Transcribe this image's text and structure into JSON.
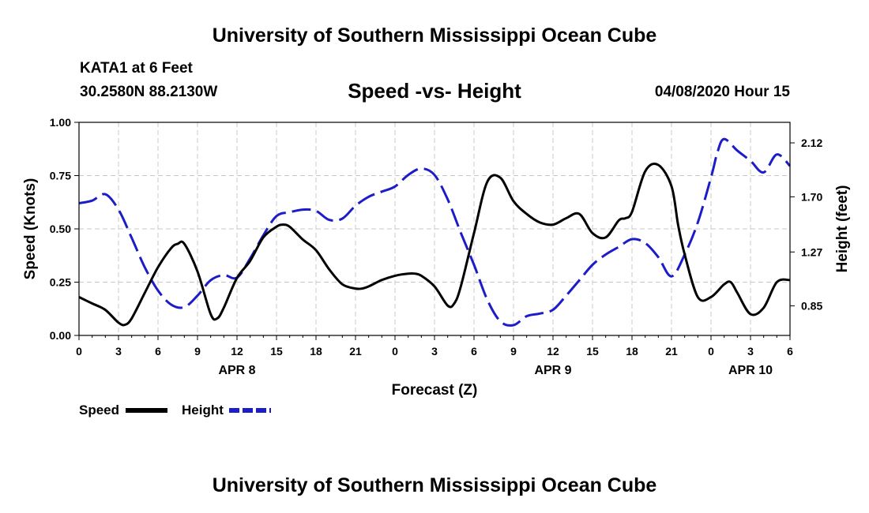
{
  "header": {
    "title": "University of Southern Mississippi Ocean Cube",
    "station": "KATA1 at 6 Feet",
    "coordinates": "30.2580N 88.2130W",
    "datetime": "04/08/2020 Hour 15"
  },
  "footer": {
    "title": "University of Southern Mississippi Ocean Cube"
  },
  "chart_data": {
    "type": "line",
    "title": "Speed -vs- Height",
    "xlabel": "Forecast (Z)",
    "ylabel": "Speed (Knots)",
    "y2label": "Height (feet)",
    "xlim": [
      0,
      54
    ],
    "ylim": [
      0,
      1
    ],
    "y2lim": [
      0.62,
      2.28
    ],
    "x_ticks": [
      0,
      3,
      6,
      9,
      12,
      15,
      18,
      21,
      24,
      27,
      30,
      33,
      36,
      39,
      42,
      45,
      48,
      51,
      54
    ],
    "x_tick_labels": [
      "0",
      "3",
      "6",
      "9",
      "12",
      "15",
      "18",
      "21",
      "0",
      "3",
      "6",
      "9",
      "12",
      "15",
      "18",
      "21",
      "0",
      "3",
      "6"
    ],
    "y_ticks": [
      0,
      0.25,
      0.5,
      0.75,
      1.0
    ],
    "y_tick_labels": [
      "0.00",
      "0.25",
      "0.50",
      "0.75",
      "1.00"
    ],
    "y2_ticks": [
      0.85,
      1.27,
      1.7,
      2.12
    ],
    "y2_tick_labels": [
      "0.85",
      "1.27",
      "1.70",
      "2.12"
    ],
    "day_labels": [
      {
        "x": 12,
        "label": "APR 8"
      },
      {
        "x": 36,
        "label": "APR 9"
      },
      {
        "x": 51,
        "label": "APR 10"
      }
    ],
    "grid": true,
    "legend": {
      "position": "bottom-left",
      "entries": [
        "Speed",
        "Height"
      ]
    },
    "series": [
      {
        "name": "Speed",
        "color": "#000000",
        "axis": "left",
        "style": "solid",
        "x": [
          0,
          1,
          2,
          3,
          3.5,
          4,
          5,
          6,
          7,
          7.5,
          8,
          9,
          10,
          10.5,
          11,
          12,
          13,
          14,
          15,
          15.5,
          16,
          17,
          18,
          19,
          20,
          21,
          21.5,
          22,
          23,
          24,
          25,
          25.5,
          26,
          27,
          28,
          28.5,
          29,
          30,
          31,
          32,
          33,
          34,
          35,
          36,
          37,
          38,
          39,
          40,
          41,
          41.5,
          42,
          43,
          44,
          45,
          45.5,
          46,
          47,
          48,
          49,
          49.5,
          50,
          51,
          52,
          53,
          54
        ],
        "y": [
          0.18,
          0.15,
          0.12,
          0.06,
          0.05,
          0.08,
          0.2,
          0.32,
          0.41,
          0.43,
          0.43,
          0.3,
          0.1,
          0.08,
          0.13,
          0.27,
          0.35,
          0.46,
          0.51,
          0.52,
          0.51,
          0.45,
          0.4,
          0.31,
          0.24,
          0.22,
          0.22,
          0.23,
          0.26,
          0.28,
          0.29,
          0.29,
          0.28,
          0.23,
          0.14,
          0.15,
          0.23,
          0.48,
          0.72,
          0.74,
          0.63,
          0.57,
          0.53,
          0.52,
          0.55,
          0.57,
          0.48,
          0.46,
          0.54,
          0.55,
          0.58,
          0.77,
          0.8,
          0.7,
          0.52,
          0.38,
          0.18,
          0.18,
          0.24,
          0.25,
          0.2,
          0.1,
          0.13,
          0.25,
          0.26
        ]
      },
      {
        "name": "Height",
        "color": "#1c1cc8",
        "axis": "right",
        "style": "dashed",
        "x": [
          0,
          1,
          2,
          3,
          4,
          5,
          6,
          7,
          8,
          9,
          10,
          11,
          12,
          13,
          14,
          15,
          16,
          17,
          18,
          19,
          20,
          21,
          22,
          23,
          24,
          25,
          26,
          27,
          28,
          29,
          30,
          31,
          32,
          33,
          34,
          35,
          36,
          37,
          38,
          39,
          40,
          41,
          42,
          43,
          44,
          45,
          46,
          47,
          48,
          48.5,
          49,
          50,
          51,
          52,
          53,
          54
        ],
        "y": [
          1.65,
          1.67,
          1.72,
          1.6,
          1.38,
          1.15,
          0.97,
          0.86,
          0.84,
          0.93,
          1.05,
          1.09,
          1.07,
          1.22,
          1.4,
          1.55,
          1.58,
          1.6,
          1.59,
          1.52,
          1.53,
          1.63,
          1.7,
          1.74,
          1.78,
          1.87,
          1.92,
          1.87,
          1.68,
          1.42,
          1.17,
          0.9,
          0.73,
          0.7,
          0.77,
          0.79,
          0.82,
          0.93,
          1.05,
          1.17,
          1.25,
          1.31,
          1.37,
          1.34,
          1.23,
          1.08,
          1.25,
          1.5,
          1.85,
          2.05,
          2.15,
          2.06,
          1.98,
          1.89,
          2.03,
          1.94
        ]
      }
    ]
  }
}
